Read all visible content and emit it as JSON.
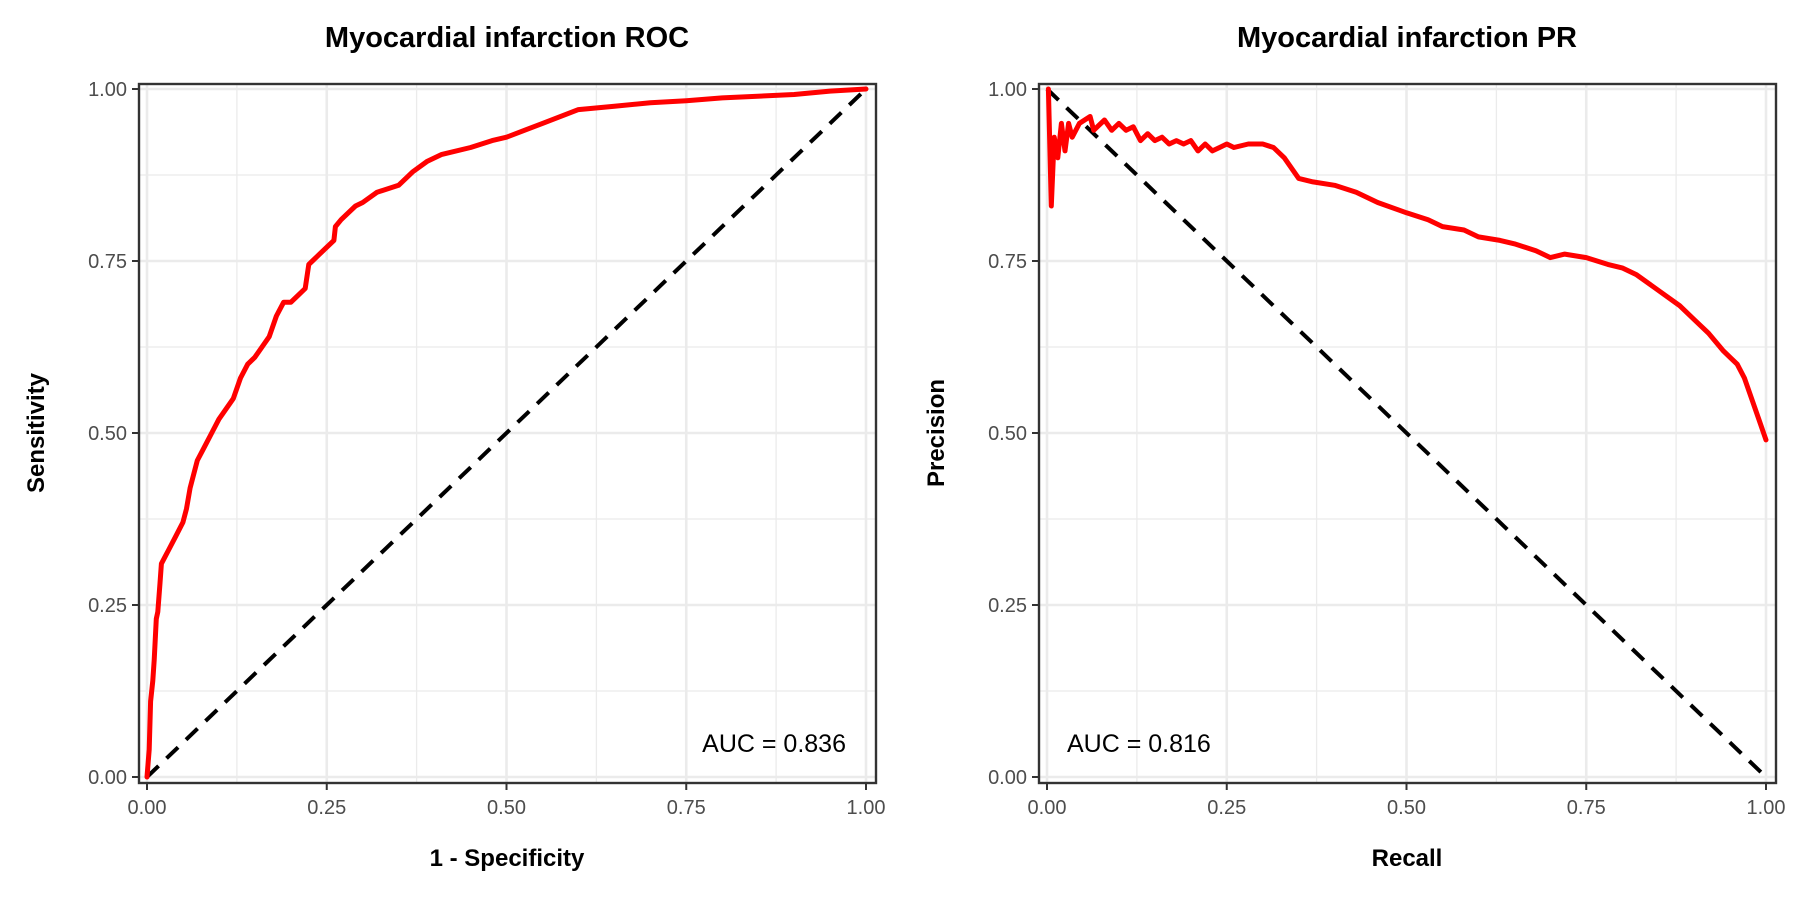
{
  "chart_data": [
    {
      "type": "line",
      "title": "Myocardial infarction ROC",
      "xlabel": "1 - Specificity",
      "ylabel": "Sensitivity",
      "xlim": [
        0,
        1
      ],
      "ylim": [
        0,
        1
      ],
      "x_ticks": [
        "0.00",
        "0.25",
        "0.50",
        "0.75",
        "1.00"
      ],
      "y_ticks": [
        "0.00",
        "0.25",
        "0.50",
        "0.75",
        "1.00"
      ],
      "grid": true,
      "annotation": "AUC =  0.836",
      "curve_color": "#ff0000",
      "reference_color": "#000000",
      "series": [
        {
          "x": [
            0.0,
            0.003,
            0.005,
            0.008,
            0.01,
            0.013,
            0.015,
            0.018,
            0.02,
            0.025,
            0.03,
            0.04,
            0.05,
            0.055,
            0.06,
            0.065,
            0.07,
            0.08,
            0.09,
            0.1,
            0.12,
            0.13,
            0.14,
            0.15,
            0.17,
            0.18,
            0.19,
            0.2,
            0.21,
            0.22,
            0.225,
            0.23,
            0.24,
            0.25,
            0.26,
            0.262,
            0.27,
            0.28,
            0.29,
            0.3,
            0.32,
            0.35,
            0.37,
            0.39,
            0.41,
            0.45,
            0.48,
            0.5,
            0.55,
            0.6,
            0.65,
            0.7,
            0.75,
            0.8,
            0.9,
            0.95,
            1.0
          ],
          "y": [
            0.0,
            0.04,
            0.11,
            0.14,
            0.17,
            0.23,
            0.24,
            0.28,
            0.31,
            0.32,
            0.33,
            0.35,
            0.37,
            0.39,
            0.42,
            0.44,
            0.46,
            0.48,
            0.5,
            0.52,
            0.55,
            0.58,
            0.6,
            0.61,
            0.64,
            0.67,
            0.69,
            0.69,
            0.7,
            0.71,
            0.745,
            0.75,
            0.76,
            0.77,
            0.78,
            0.8,
            0.81,
            0.82,
            0.83,
            0.835,
            0.85,
            0.86,
            0.88,
            0.895,
            0.905,
            0.915,
            0.925,
            0.93,
            0.95,
            0.97,
            0.975,
            0.98,
            0.983,
            0.987,
            0.992,
            0.997,
            1.0
          ]
        }
      ],
      "reference_line": {
        "x": [
          0,
          1
        ],
        "y": [
          0,
          1
        ]
      }
    },
    {
      "type": "line",
      "title": "Myocardial infarction PR",
      "xlabel": "Recall",
      "ylabel": "Precision",
      "xlim": [
        0,
        1
      ],
      "ylim": [
        0,
        1
      ],
      "x_ticks": [
        "0.00",
        "0.25",
        "0.50",
        "0.75",
        "1.00"
      ],
      "y_ticks": [
        "0.00",
        "0.25",
        "0.50",
        "0.75",
        "1.00"
      ],
      "grid": true,
      "annotation": "AUC =  0.816",
      "curve_color": "#ff0000",
      "reference_color": "#000000",
      "series": [
        {
          "x": [
            0.002,
            0.006,
            0.01,
            0.015,
            0.02,
            0.025,
            0.03,
            0.035,
            0.045,
            0.06,
            0.065,
            0.07,
            0.08,
            0.09,
            0.1,
            0.11,
            0.12,
            0.13,
            0.14,
            0.15,
            0.16,
            0.17,
            0.18,
            0.19,
            0.2,
            0.21,
            0.22,
            0.23,
            0.24,
            0.25,
            0.26,
            0.28,
            0.3,
            0.315,
            0.33,
            0.35,
            0.37,
            0.4,
            0.43,
            0.46,
            0.5,
            0.53,
            0.55,
            0.58,
            0.6,
            0.63,
            0.65,
            0.68,
            0.7,
            0.72,
            0.75,
            0.78,
            0.8,
            0.82,
            0.84,
            0.86,
            0.88,
            0.9,
            0.92,
            0.94,
            0.95,
            0.96,
            0.97,
            0.98,
            0.99,
            1.0
          ],
          "y": [
            1.0,
            0.83,
            0.93,
            0.9,
            0.95,
            0.91,
            0.95,
            0.93,
            0.95,
            0.96,
            0.94,
            0.945,
            0.955,
            0.94,
            0.95,
            0.94,
            0.945,
            0.925,
            0.935,
            0.925,
            0.93,
            0.92,
            0.925,
            0.92,
            0.925,
            0.91,
            0.92,
            0.91,
            0.915,
            0.92,
            0.915,
            0.92,
            0.92,
            0.915,
            0.9,
            0.87,
            0.865,
            0.86,
            0.85,
            0.835,
            0.82,
            0.81,
            0.8,
            0.795,
            0.785,
            0.78,
            0.775,
            0.765,
            0.755,
            0.76,
            0.755,
            0.745,
            0.74,
            0.73,
            0.715,
            0.7,
            0.685,
            0.665,
            0.645,
            0.62,
            0.61,
            0.6,
            0.58,
            0.55,
            0.52,
            0.49
          ]
        }
      ],
      "reference_line": {
        "x": [
          0,
          1
        ],
        "y": [
          1,
          0
        ]
      }
    }
  ]
}
